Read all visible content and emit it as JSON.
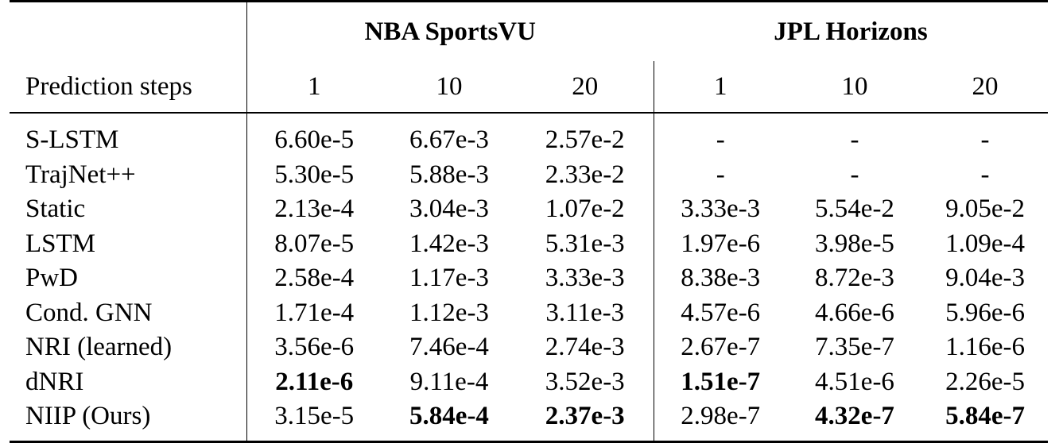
{
  "table": {
    "groups": [
      "NBA SportsVU",
      "JPL Horizons"
    ],
    "steps_label": "Prediction steps",
    "steps": [
      "1",
      "10",
      "20",
      "1",
      "10",
      "20"
    ],
    "rows": [
      {
        "method": "S-LSTM",
        "values": [
          "6.60e-5",
          "6.67e-3",
          "2.57e-2",
          "-",
          "-",
          "-"
        ],
        "bold": [
          false,
          false,
          false,
          false,
          false,
          false
        ]
      },
      {
        "method": "TrajNet++",
        "values": [
          "5.30e-5",
          "5.88e-3",
          "2.33e-2",
          "-",
          "-",
          "-"
        ],
        "bold": [
          false,
          false,
          false,
          false,
          false,
          false
        ]
      },
      {
        "method": "Static",
        "values": [
          "2.13e-4",
          "3.04e-3",
          "1.07e-2",
          "3.33e-3",
          "5.54e-2",
          "9.05e-2"
        ],
        "bold": [
          false,
          false,
          false,
          false,
          false,
          false
        ]
      },
      {
        "method": "LSTM",
        "values": [
          "8.07e-5",
          "1.42e-3",
          "5.31e-3",
          "1.97e-6",
          "3.98e-5",
          "1.09e-4"
        ],
        "bold": [
          false,
          false,
          false,
          false,
          false,
          false
        ]
      },
      {
        "method": "PwD",
        "values": [
          "2.58e-4",
          "1.17e-3",
          "3.33e-3",
          "8.38e-3",
          "8.72e-3",
          "9.04e-3"
        ],
        "bold": [
          false,
          false,
          false,
          false,
          false,
          false
        ]
      },
      {
        "method": "Cond. GNN",
        "values": [
          "1.71e-4",
          "1.12e-3",
          "3.11e-3",
          "4.57e-6",
          "4.66e-6",
          "5.96e-6"
        ],
        "bold": [
          false,
          false,
          false,
          false,
          false,
          false
        ]
      },
      {
        "method": "NRI (learned)",
        "values": [
          "3.56e-6",
          "7.46e-4",
          "2.74e-3",
          "2.67e-7",
          "7.35e-7",
          "1.16e-6"
        ],
        "bold": [
          false,
          false,
          false,
          false,
          false,
          false
        ]
      },
      {
        "method": "dNRI",
        "values": [
          "2.11e-6",
          "9.11e-4",
          "3.52e-3",
          "1.51e-7",
          "4.51e-6",
          "2.26e-5"
        ],
        "bold": [
          true,
          false,
          false,
          true,
          false,
          false
        ]
      },
      {
        "method": "NIIP (Ours)",
        "values": [
          "3.15e-5",
          "5.84e-4",
          "2.37e-3",
          "2.98e-7",
          "4.32e-7",
          "5.84e-7"
        ],
        "bold": [
          false,
          true,
          true,
          false,
          true,
          true
        ]
      }
    ]
  }
}
